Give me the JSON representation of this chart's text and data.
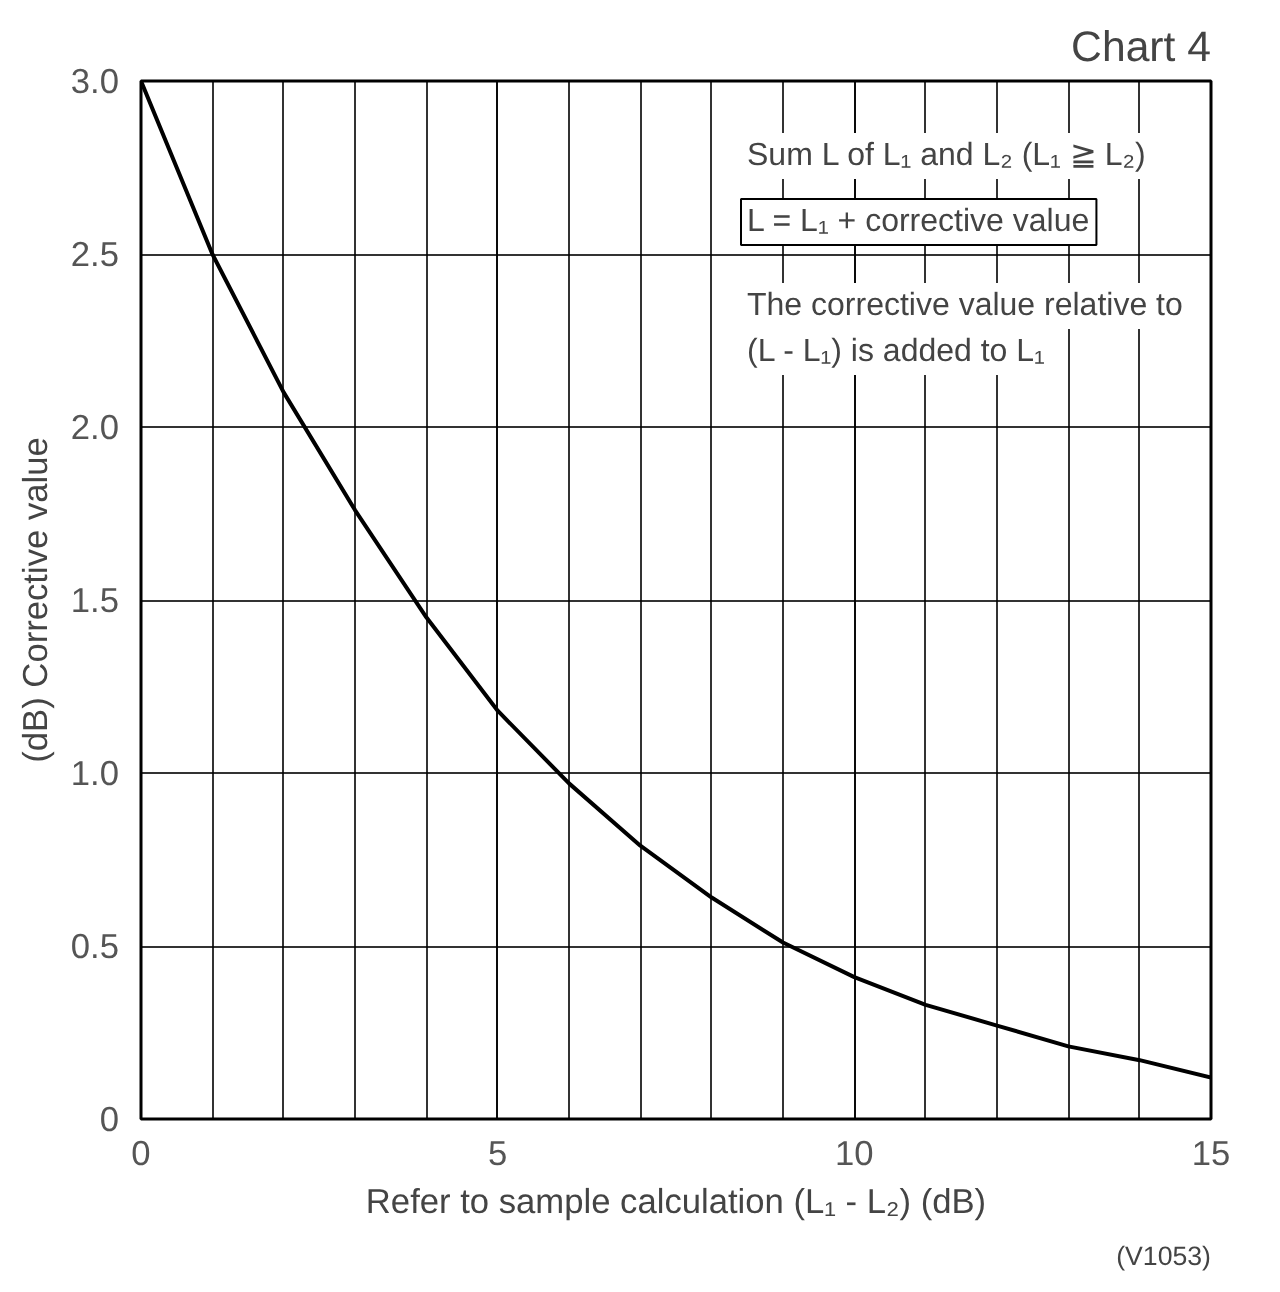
{
  "chart_data": {
    "type": "line",
    "title": "Chart 4",
    "xlabel": "Refer to sample calculation (L₁ - L₂) (dB)",
    "ylabel": "(dB) Corrective value",
    "x": [
      0,
      1,
      2,
      3,
      4,
      5,
      6,
      7,
      8,
      9,
      10,
      11,
      12,
      13,
      14,
      15
    ],
    "series": [
      {
        "color": "#000000",
        "values": [
          3.0,
          2.5,
          2.1,
          1.76,
          1.45,
          1.18,
          0.97,
          0.79,
          0.64,
          0.51,
          0.41,
          0.33,
          0.27,
          0.21,
          0.17,
          0.12
        ]
      }
    ],
    "xlim": [
      0,
      15
    ],
    "ylim": [
      0,
      3
    ],
    "xticks": [
      0,
      5,
      10,
      15
    ],
    "yticks": [
      0,
      {
        "value": 0.5,
        "label": "0.5"
      },
      {
        "value": 1,
        "label": "1.0"
      },
      {
        "value": 1.5,
        "label": "1.5"
      },
      {
        "value": 2,
        "label": "2.0"
      },
      {
        "value": 2.5,
        "label": "2.5"
      },
      {
        "value": 3,
        "label": "3.0"
      }
    ],
    "grid": true,
    "marker": "none",
    "line_style": "solid",
    "annotations": [
      "Sum L of L₁ and L₂ (L₁ ≧ L₂)",
      "L = L₁ + corrective value",
      "The corrective value relative to",
      "(L - L₁) is added to L₁",
      "(V1053)"
    ]
  }
}
